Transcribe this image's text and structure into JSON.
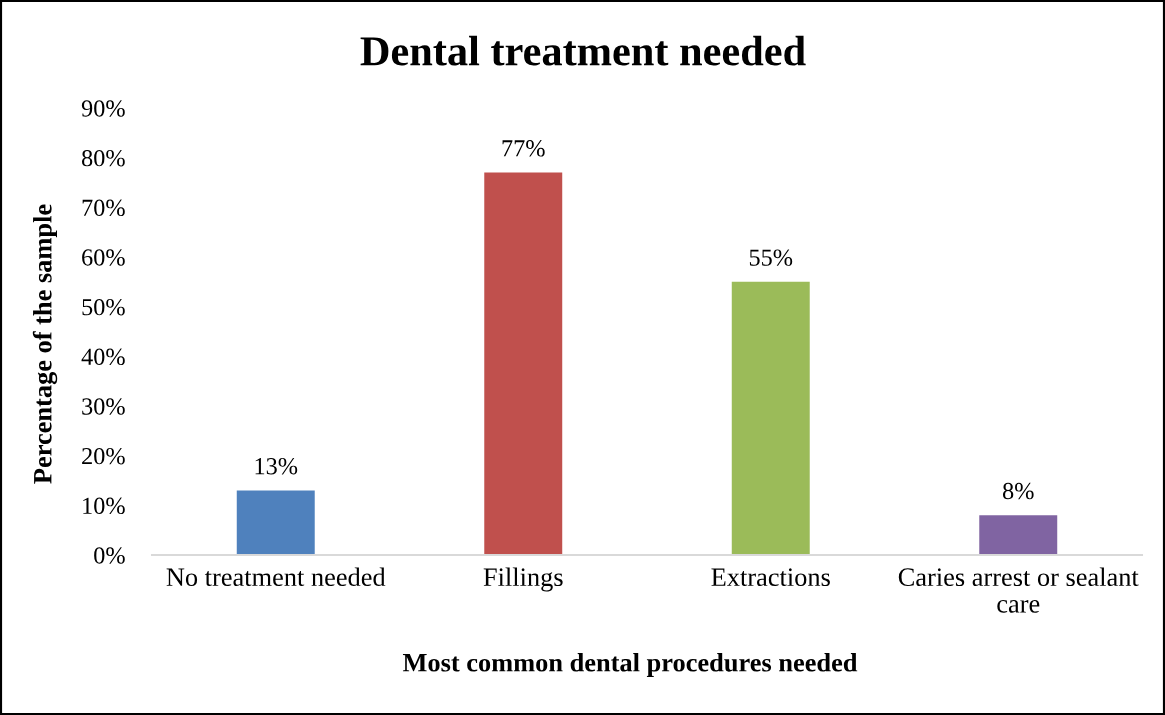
{
  "chart_data": {
    "type": "bar",
    "title": "Dental treatment needed",
    "xlabel": "Most common dental procedures needed",
    "ylabel": "Percentage of the sample",
    "categories": [
      "No treatment needed",
      "Fillings",
      "Extractions",
      "Caries arrest or sealant care"
    ],
    "values": [
      13,
      77,
      55,
      8
    ],
    "colors": [
      "#4f81bd",
      "#c0504d",
      "#9bbb59",
      "#8064a2"
    ],
    "value_labels": [
      "13%",
      "77%",
      "55%",
      "8%"
    ],
    "ylim": [
      0,
      90
    ],
    "yticks": [
      {
        "value": 0,
        "label": "0%"
      },
      {
        "value": 10,
        "label": "10%"
      },
      {
        "value": 20,
        "label": "20%"
      },
      {
        "value": 30,
        "label": "30%"
      },
      {
        "value": 40,
        "label": "40%"
      },
      {
        "value": 50,
        "label": "50%"
      },
      {
        "value": 60,
        "label": "60%"
      },
      {
        "value": 70,
        "label": "70%"
      },
      {
        "value": 80,
        "label": "80%"
      },
      {
        "value": 90,
        "label": "90%"
      }
    ],
    "legend": false
  }
}
